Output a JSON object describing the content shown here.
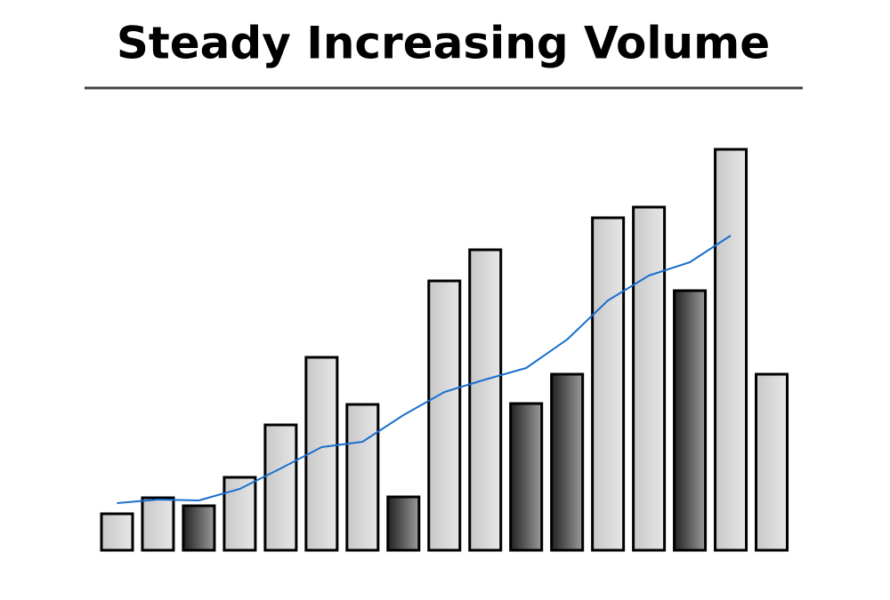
{
  "chart_data": {
    "type": "bar",
    "title": "Steady Increasing Volume",
    "values": [
      41,
      59,
      50,
      82,
      141,
      217,
      164,
      60,
      303,
      338,
      165,
      198,
      374,
      386,
      292,
      451,
      198
    ],
    "bar_colors": [
      "#c8c8c8",
      "#c8c8c8",
      "#222222",
      "#c8c8c8",
      "#c8c8c8",
      "#c8c8c8",
      "#c8c8c8",
      "#222222",
      "#c8c8c8",
      "#c8c8c8",
      "#222222",
      "#222222",
      "#c8c8c8",
      "#c8c8c8",
      "#222222",
      "#c8c8c8",
      "#c8c8c8"
    ],
    "line": {
      "values": [
        53,
        57,
        56,
        69,
        92,
        116,
        122,
        152,
        178,
        192,
        205,
        237,
        281,
        309,
        324,
        354,
        null
      ],
      "color": "#1a6fcf"
    },
    "ylim": [
      0,
      470
    ]
  }
}
